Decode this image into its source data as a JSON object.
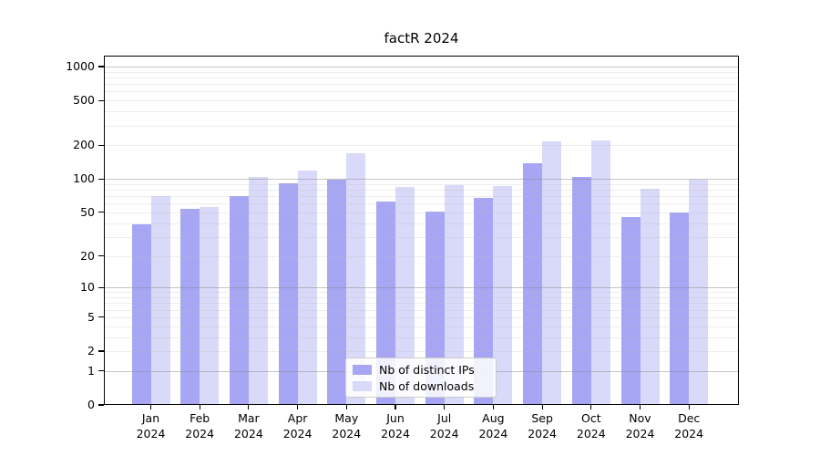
{
  "chart_data": {
    "type": "bar",
    "title": "factR 2024",
    "xlabel": "",
    "ylabel": "",
    "y_scale": "log1p",
    "grid": true,
    "legend_position": "lower center",
    "categories": [
      "Jan",
      "Feb",
      "Mar",
      "Apr",
      "May",
      "Jun",
      "Jul",
      "Aug",
      "Sep",
      "Oct",
      "Nov",
      "Dec"
    ],
    "x_year": "2024",
    "y_ticks": [
      0,
      1,
      2,
      5,
      10,
      20,
      50,
      100,
      200,
      500,
      1000
    ],
    "ylim": [
      0,
      1250
    ],
    "series": [
      {
        "name": "Nb of distinct IPs",
        "color": "#a6a6f4",
        "values": [
          39,
          54,
          70,
          92,
          98,
          63,
          51,
          68,
          137,
          104,
          45,
          50
        ]
      },
      {
        "name": "Nb of downloads",
        "color": "#d9d9fa",
        "values": [
          70,
          56,
          105,
          119,
          170,
          84,
          88,
          86,
          215,
          220,
          81,
          98
        ]
      }
    ],
    "colors": {
      "bar_distinct_ips": "#a6a6f4",
      "bar_downloads": "#d9d9fa",
      "axis": "#000000",
      "grid_major": "#c6c6c6",
      "grid_minor": "#ededed",
      "background": "#ffffff"
    }
  }
}
